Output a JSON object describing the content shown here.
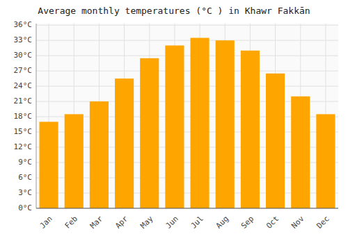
{
  "chart_data": {
    "type": "bar",
    "title": "Average monthly temperatures (°C ) in Khawr Fakkān",
    "categories": [
      "Jan",
      "Feb",
      "Mar",
      "Apr",
      "May",
      "Jun",
      "Jul",
      "Aug",
      "Sep",
      "Oct",
      "Nov",
      "Dec"
    ],
    "values": [
      17,
      18.5,
      21,
      25.5,
      29.5,
      32,
      33.5,
      33,
      31,
      26.5,
      22,
      18.5
    ],
    "color": "#FFA500",
    "ylim": [
      0,
      36.3
    ],
    "yticks": [
      {
        "value": 0,
        "label": "0°C"
      },
      {
        "value": 3,
        "label": "3°C"
      },
      {
        "value": 6,
        "label": "6°C"
      },
      {
        "value": 9,
        "label": "9°C"
      },
      {
        "value": 12,
        "label": "12°C"
      },
      {
        "value": 15,
        "label": "15°C"
      },
      {
        "value": 18,
        "label": "18°C"
      },
      {
        "value": 21,
        "label": "21°C"
      },
      {
        "value": 24,
        "label": "24°C"
      },
      {
        "value": 27,
        "label": "27°C"
      },
      {
        "value": 30,
        "label": "30°C"
      },
      {
        "value": 33,
        "label": "33°C"
      },
      {
        "value": 36,
        "label": "36°C"
      }
    ],
    "grid": true
  }
}
